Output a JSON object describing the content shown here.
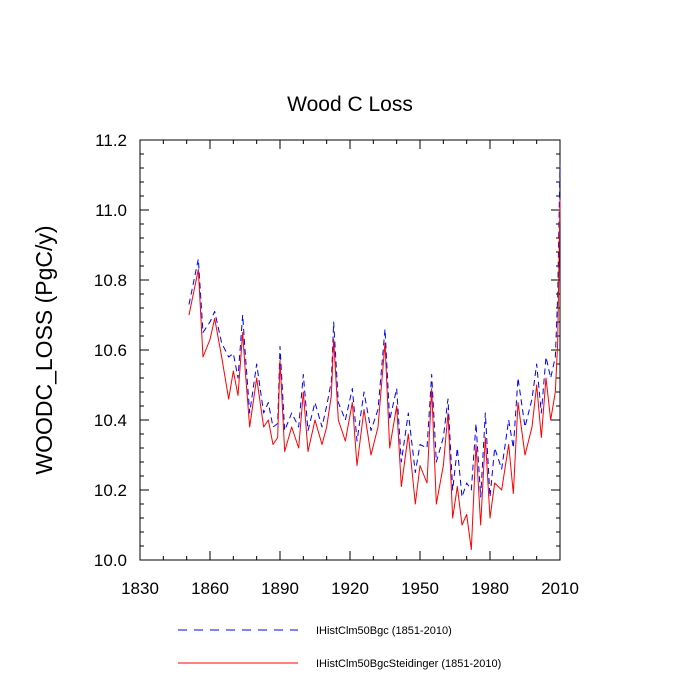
{
  "chart_data": {
    "type": "line",
    "title": "Wood C Loss",
    "xlabel": "",
    "ylabel": "WOODC_LOSS  (PgC/y)",
    "xlim": [
      1830,
      2010
    ],
    "ylim": [
      10.0,
      11.2
    ],
    "x_ticks": [
      "1830",
      "1860",
      "1890",
      "1920",
      "1950",
      "1980",
      "2010"
    ],
    "y_ticks": [
      "10.0",
      "10.2",
      "10.4",
      "10.6",
      "10.8",
      "11.0",
      "11.2"
    ],
    "grid": false,
    "legend_position": "bottom",
    "series": [
      {
        "name": "IHistClm50Bgc (1851-2010)",
        "color": "#0000ff",
        "style": "dashed",
        "x": [
          1851,
          1855,
          1857,
          1860,
          1862,
          1865,
          1868,
          1870,
          1872,
          1874,
          1875,
          1877,
          1880,
          1883,
          1885,
          1887,
          1889,
          1890,
          1892,
          1895,
          1898,
          1900,
          1902,
          1905,
          1908,
          1910,
          1912,
          1913,
          1915,
          1918,
          1921,
          1923,
          1926,
          1929,
          1932,
          1935,
          1937,
          1940,
          1942,
          1945,
          1948,
          1950,
          1953,
          1955,
          1957,
          1960,
          1962,
          1964,
          1966,
          1968,
          1970,
          1972,
          1974,
          1976,
          1978,
          1980,
          1982,
          1985,
          1988,
          1990,
          1992,
          1995,
          1998,
          2000,
          2002,
          2004,
          2006,
          2008,
          2009,
          2010
        ],
        "values": [
          10.73,
          10.86,
          10.65,
          10.68,
          10.71,
          10.62,
          10.58,
          10.59,
          10.52,
          10.7,
          10.6,
          10.42,
          10.56,
          10.42,
          10.45,
          10.38,
          10.39,
          10.61,
          10.37,
          10.42,
          10.38,
          10.53,
          10.37,
          10.45,
          10.38,
          10.44,
          10.51,
          10.68,
          10.45,
          10.4,
          10.49,
          10.34,
          10.48,
          10.37,
          10.43,
          10.66,
          10.4,
          10.49,
          10.28,
          10.42,
          10.25,
          10.33,
          10.32,
          10.53,
          10.28,
          10.35,
          10.46,
          10.2,
          10.32,
          10.18,
          10.22,
          10.2,
          10.39,
          10.18,
          10.42,
          10.18,
          10.32,
          10.26,
          10.4,
          10.32,
          10.52,
          10.38,
          10.46,
          10.56,
          10.42,
          10.58,
          10.52,
          10.58,
          10.75,
          11.13
        ]
      },
      {
        "name": "IHistClm50BgcSteidinger (1851-2010)",
        "color": "#ff0000",
        "style": "solid",
        "x": [
          1851,
          1855,
          1857,
          1860,
          1862,
          1865,
          1868,
          1870,
          1872,
          1874,
          1875,
          1877,
          1880,
          1883,
          1885,
          1887,
          1889,
          1890,
          1892,
          1895,
          1898,
          1900,
          1902,
          1905,
          1908,
          1910,
          1912,
          1913,
          1915,
          1918,
          1921,
          1923,
          1926,
          1929,
          1932,
          1935,
          1937,
          1940,
          1942,
          1945,
          1948,
          1950,
          1953,
          1955,
          1957,
          1960,
          1962,
          1964,
          1966,
          1968,
          1970,
          1972,
          1974,
          1976,
          1978,
          1980,
          1982,
          1985,
          1988,
          1990,
          1992,
          1995,
          1998,
          2000,
          2002,
          2004,
          2006,
          2008,
          2009,
          2010
        ],
        "values": [
          10.7,
          10.83,
          10.58,
          10.63,
          10.69,
          10.58,
          10.46,
          10.54,
          10.47,
          10.65,
          10.55,
          10.38,
          10.52,
          10.38,
          10.4,
          10.33,
          10.35,
          10.57,
          10.31,
          10.38,
          10.32,
          10.48,
          10.31,
          10.4,
          10.33,
          10.38,
          10.47,
          10.63,
          10.4,
          10.34,
          10.45,
          10.27,
          10.43,
          10.3,
          10.38,
          10.62,
          10.32,
          10.44,
          10.21,
          10.36,
          10.16,
          10.27,
          10.22,
          10.49,
          10.16,
          10.27,
          10.42,
          10.12,
          10.21,
          10.1,
          10.13,
          10.03,
          10.33,
          10.1,
          10.35,
          10.12,
          10.22,
          10.2,
          10.33,
          10.19,
          10.45,
          10.3,
          10.38,
          10.5,
          10.35,
          10.52,
          10.4,
          10.48,
          10.62,
          11.03
        ]
      }
    ]
  }
}
